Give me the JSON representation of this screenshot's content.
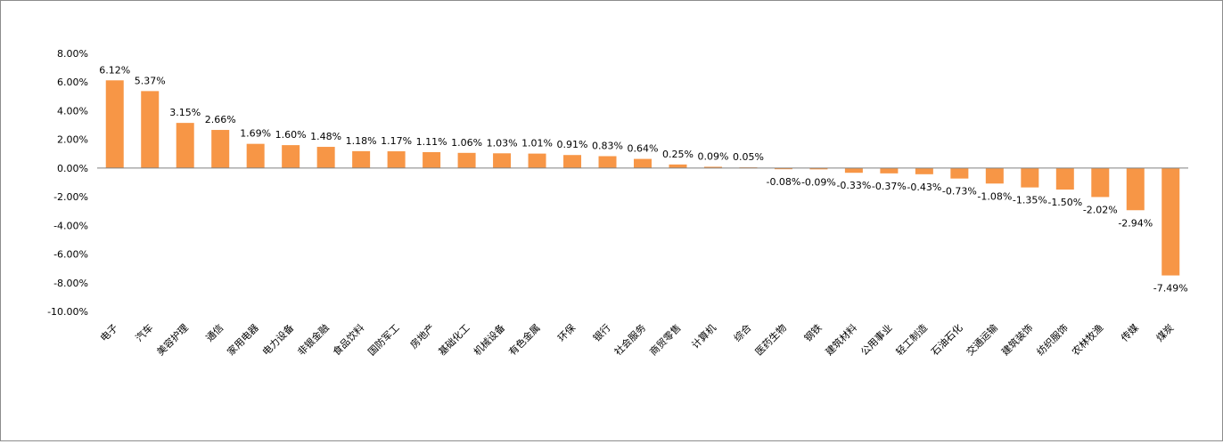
{
  "chart_data": {
    "type": "bar",
    "categories": [
      "电子",
      "汽车",
      "美容护理",
      "通信",
      "家用电器",
      "电力设备",
      "非银金融",
      "食品饮料",
      "国防军工",
      "房地产",
      "基础化工",
      "机械设备",
      "有色金属",
      "环保",
      "银行",
      "社会服务",
      "商贸零售",
      "计算机",
      "综合",
      "医药生物",
      "钢铁",
      "建筑材料",
      "公用事业",
      "轻工制造",
      "石油石化",
      "交通运输",
      "建筑装饰",
      "纺织服饰",
      "农林牧渔",
      "传媒",
      "煤炭"
    ],
    "values": [
      6.12,
      5.37,
      3.15,
      2.66,
      1.69,
      1.6,
      1.48,
      1.18,
      1.17,
      1.11,
      1.06,
      1.03,
      1.01,
      0.91,
      0.83,
      0.64,
      0.25,
      0.09,
      0.05,
      -0.08,
      -0.09,
      -0.33,
      -0.37,
      -0.43,
      -0.73,
      -1.08,
      -1.35,
      -1.5,
      -2.02,
      -2.94,
      -7.49
    ],
    "value_labels": [
      "6.12%",
      "5.37%",
      "3.15%",
      "2.66%",
      "1.69%",
      "1.60%",
      "1.48%",
      "1.18%",
      "1.17%",
      "1.11%",
      "1.06%",
      "1.03%",
      "1.01%",
      "0.91%",
      "0.83%",
      "0.64%",
      "0.25%",
      "0.09%",
      "0.05%",
      "-0.08%",
      "-0.09%",
      "-0.33%",
      "-0.37%",
      "-0.43%",
      "-0.73%",
      "-1.08%",
      "-1.35%",
      "-1.50%",
      "-2.02%",
      "-2.94%",
      "-7.49%"
    ],
    "yticks": [
      "8.00%",
      "6.00%",
      "4.00%",
      "2.00%",
      "0.00%",
      "-2.00%",
      "-4.00%",
      "-6.00%",
      "-8.00%",
      "-10.00%"
    ],
    "ylim": [
      -10,
      8
    ],
    "title": "",
    "xlabel": "",
    "ylabel": "",
    "grid": false,
    "bar_color": "#F79646"
  }
}
